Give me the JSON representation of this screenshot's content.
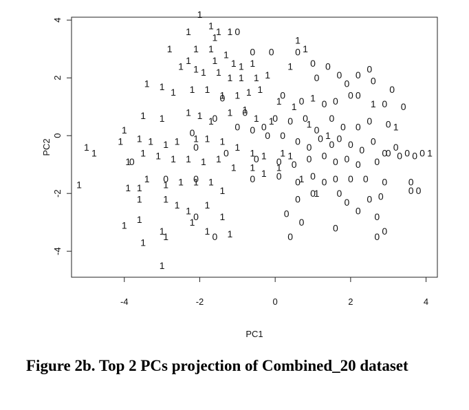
{
  "caption": "Figure 2b.  Top 2 PCs projection of Combined_20 dataset",
  "chart_data": {
    "type": "scatter",
    "title": "",
    "xlabel": "PC1",
    "ylabel": "PC2",
    "xlim": [
      -5.4,
      4.3
    ],
    "ylim": [
      -4.9,
      4.1
    ],
    "xticks": [
      "-4",
      "-2",
      "0",
      "2",
      "4"
    ],
    "yticks": [
      "-4",
      "-2",
      "0",
      "2",
      "4"
    ],
    "grid": false,
    "legend": "none",
    "series": [
      {
        "label": "1",
        "points": [
          [
            -2.0,
            4.2
          ],
          [
            -1.7,
            3.8
          ],
          [
            -1.5,
            3.6
          ],
          [
            -1.2,
            3.6
          ],
          [
            -2.3,
            3.6
          ],
          [
            -1.6,
            3.4
          ],
          [
            -2.8,
            3.0
          ],
          [
            -2.1,
            3.0
          ],
          [
            -1.7,
            3.0
          ],
          [
            -1.3,
            2.8
          ],
          [
            -1.6,
            2.6
          ],
          [
            -1.1,
            2.5
          ],
          [
            -0.9,
            2.4
          ],
          [
            -0.6,
            2.5
          ],
          [
            -2.3,
            2.6
          ],
          [
            -2.5,
            2.4
          ],
          [
            -2.1,
            2.3
          ],
          [
            -1.9,
            2.2
          ],
          [
            -1.5,
            2.2
          ],
          [
            -1.2,
            2.0
          ],
          [
            -0.9,
            2.0
          ],
          [
            -0.5,
            2.0
          ],
          [
            -0.2,
            2.1
          ],
          [
            0.4,
            2.4
          ],
          [
            0.8,
            3.0
          ],
          [
            0.6,
            3.3
          ],
          [
            -3.4,
            1.8
          ],
          [
            -3.0,
            1.7
          ],
          [
            -2.7,
            1.5
          ],
          [
            -2.2,
            1.6
          ],
          [
            -1.8,
            1.6
          ],
          [
            -1.4,
            1.4
          ],
          [
            -1.0,
            1.4
          ],
          [
            -0.7,
            1.5
          ],
          [
            -0.4,
            1.6
          ],
          [
            0.1,
            1.2
          ],
          [
            0.5,
            1.0
          ],
          [
            1.0,
            1.3
          ],
          [
            -3.5,
            0.7
          ],
          [
            -3.0,
            0.6
          ],
          [
            -2.3,
            0.8
          ],
          [
            -2.0,
            0.7
          ],
          [
            -1.7,
            0.5
          ],
          [
            -1.2,
            0.8
          ],
          [
            -0.8,
            0.9
          ],
          [
            -0.5,
            0.6
          ],
          [
            -0.1,
            0.5
          ],
          [
            -4.0,
            0.2
          ],
          [
            -3.6,
            -0.1
          ],
          [
            -3.3,
            -0.2
          ],
          [
            -2.9,
            -0.3
          ],
          [
            -2.6,
            -0.2
          ],
          [
            -2.1,
            -0.1
          ],
          [
            -1.8,
            -0.1
          ],
          [
            -1.4,
            -0.2
          ],
          [
            -1.0,
            -0.4
          ],
          [
            -0.6,
            -0.6
          ],
          [
            -0.3,
            -0.7
          ],
          [
            0.2,
            -0.6
          ],
          [
            -5.0,
            -0.4
          ],
          [
            -4.8,
            -0.6
          ],
          [
            -4.1,
            -0.2
          ],
          [
            -3.9,
            -0.9
          ],
          [
            -3.5,
            -0.6
          ],
          [
            -3.1,
            -0.7
          ],
          [
            -2.7,
            -0.8
          ],
          [
            -2.3,
            -0.8
          ],
          [
            -1.9,
            -0.9
          ],
          [
            -1.5,
            -0.8
          ],
          [
            -1.1,
            -1.1
          ],
          [
            -0.6,
            -1.1
          ],
          [
            -0.3,
            -1.3
          ],
          [
            0.1,
            -1.1
          ],
          [
            -3.9,
            -1.8
          ],
          [
            -3.6,
            -1.8
          ],
          [
            -3.4,
            -1.5
          ],
          [
            -2.9,
            -1.7
          ],
          [
            -2.5,
            -1.6
          ],
          [
            -2.1,
            -1.6
          ],
          [
            -1.7,
            -1.6
          ],
          [
            -1.4,
            -1.9
          ],
          [
            -5.2,
            -1.7
          ],
          [
            -3.6,
            -2.2
          ],
          [
            -2.9,
            -2.2
          ],
          [
            -2.6,
            -2.4
          ],
          [
            -2.3,
            -2.6
          ],
          [
            -1.8,
            -2.4
          ],
          [
            -1.4,
            -2.8
          ],
          [
            -4.0,
            -3.1
          ],
          [
            -3.6,
            -2.9
          ],
          [
            -3.0,
            -3.3
          ],
          [
            -2.2,
            -3.0
          ],
          [
            -1.8,
            -3.3
          ],
          [
            -1.2,
            -3.4
          ],
          [
            -3.5,
            -3.7
          ],
          [
            -2.9,
            -3.5
          ],
          [
            -3.0,
            -4.5
          ],
          [
            0.4,
            -0.7
          ],
          [
            0.7,
            -1.5
          ],
          [
            1.1,
            -2.0
          ],
          [
            0.9,
            0.4
          ],
          [
            1.4,
            0.0
          ],
          [
            2.6,
            1.1
          ],
          [
            3.2,
            0.3
          ],
          [
            4.1,
            -0.6
          ]
        ]
      },
      {
        "label": "0",
        "points": [
          [
            -1.0,
            3.6
          ],
          [
            -0.6,
            2.9
          ],
          [
            -0.1,
            2.9
          ],
          [
            0.6,
            2.9
          ],
          [
            1.0,
            2.5
          ],
          [
            1.4,
            2.4
          ],
          [
            1.1,
            2.0
          ],
          [
            1.7,
            2.1
          ],
          [
            1.9,
            1.8
          ],
          [
            2.2,
            2.1
          ],
          [
            2.5,
            2.3
          ],
          [
            2.6,
            1.9
          ],
          [
            3.1,
            1.6
          ],
          [
            0.2,
            1.4
          ],
          [
            0.7,
            1.2
          ],
          [
            1.3,
            1.1
          ],
          [
            1.6,
            1.2
          ],
          [
            2.0,
            1.4
          ],
          [
            2.2,
            1.4
          ],
          [
            2.9,
            1.1
          ],
          [
            3.4,
            1.0
          ],
          [
            -1.4,
            1.3
          ],
          [
            -0.8,
            0.8
          ],
          [
            -0.3,
            0.3
          ],
          [
            0.0,
            0.6
          ],
          [
            0.4,
            0.5
          ],
          [
            0.8,
            0.6
          ],
          [
            1.1,
            0.2
          ],
          [
            1.5,
            0.6
          ],
          [
            1.8,
            0.3
          ],
          [
            2.2,
            0.3
          ],
          [
            2.5,
            0.5
          ],
          [
            3.0,
            0.4
          ],
          [
            -2.2,
            0.1
          ],
          [
            -1.6,
            0.6
          ],
          [
            -1.0,
            0.3
          ],
          [
            -0.6,
            0.2
          ],
          [
            -0.2,
            0.0
          ],
          [
            0.2,
            0.0
          ],
          [
            0.6,
            -0.2
          ],
          [
            0.9,
            -0.4
          ],
          [
            1.2,
            -0.1
          ],
          [
            1.5,
            -0.3
          ],
          [
            1.7,
            -0.1
          ],
          [
            2.0,
            -0.3
          ],
          [
            2.3,
            -0.5
          ],
          [
            2.6,
            -0.2
          ],
          [
            2.9,
            -0.6
          ],
          [
            3.2,
            -0.4
          ],
          [
            3.5,
            -0.6
          ],
          [
            3.9,
            -0.6
          ],
          [
            -3.8,
            -0.9
          ],
          [
            -2.1,
            -0.4
          ],
          [
            -1.3,
            -0.6
          ],
          [
            -0.5,
            -0.8
          ],
          [
            0.1,
            -0.9
          ],
          [
            0.5,
            -1.0
          ],
          [
            0.9,
            -0.8
          ],
          [
            1.3,
            -0.7
          ],
          [
            1.6,
            -0.9
          ],
          [
            1.9,
            -0.8
          ],
          [
            2.2,
            -1.0
          ],
          [
            2.7,
            -0.9
          ],
          [
            3.0,
            -0.6
          ],
          [
            3.3,
            -0.7
          ],
          [
            3.7,
            -0.7
          ],
          [
            -2.9,
            -1.5
          ],
          [
            -2.1,
            -1.5
          ],
          [
            -0.6,
            -1.5
          ],
          [
            0.1,
            -1.4
          ],
          [
            0.6,
            -1.6
          ],
          [
            1.0,
            -1.4
          ],
          [
            1.3,
            -1.6
          ],
          [
            1.6,
            -1.5
          ],
          [
            2.0,
            -1.5
          ],
          [
            2.4,
            -1.5
          ],
          [
            2.9,
            -1.6
          ],
          [
            3.6,
            -1.6
          ],
          [
            0.6,
            -2.2
          ],
          [
            1.0,
            -2.0
          ],
          [
            1.7,
            -2.0
          ],
          [
            1.9,
            -2.3
          ],
          [
            2.5,
            -2.2
          ],
          [
            2.8,
            -2.1
          ],
          [
            3.6,
            -1.9
          ],
          [
            3.8,
            -1.9
          ],
          [
            0.3,
            -2.7
          ],
          [
            0.7,
            -3.0
          ],
          [
            1.6,
            -3.2
          ],
          [
            2.2,
            -2.6
          ],
          [
            2.7,
            -2.8
          ],
          [
            -2.1,
            -2.8
          ],
          [
            -1.6,
            -3.5
          ],
          [
            0.4,
            -3.5
          ],
          [
            2.7,
            -3.5
          ],
          [
            2.9,
            -3.3
          ]
        ]
      }
    ]
  }
}
